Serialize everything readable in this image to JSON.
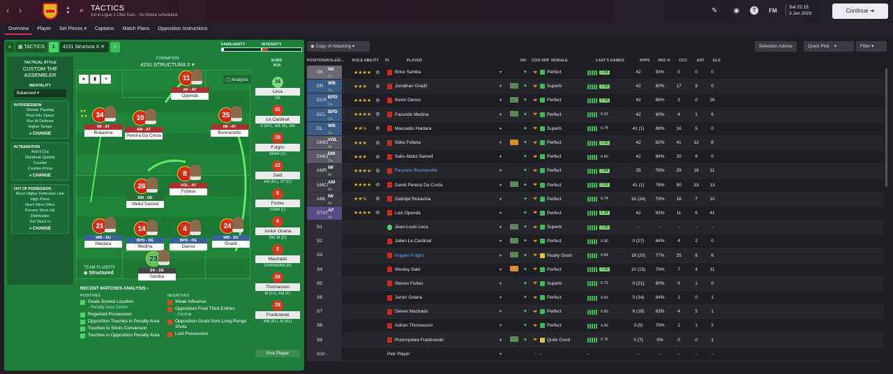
{
  "header": {
    "title": "TACTICS",
    "subtitle": "1st in Ligue 1 Uber Eats - No fixture scheduled.",
    "date_line1": "Sat 22:15",
    "date_line2": "3 Jun 2023",
    "continue": "Continue",
    "fm": "FM",
    "help": "?"
  },
  "tabs": [
    "Overview",
    "Player",
    "Set Pieces",
    "Captains",
    "Match Plans",
    "Opposition Instructions"
  ],
  "toolbar": {
    "tactics": "TACTICS",
    "slot": "1",
    "formation_name": "4231 Structura X",
    "familiarity": "FAMILIARITY",
    "intensity": "INTENSITY",
    "familiarity_level": 0.05,
    "intensity_level": 0.15
  },
  "tactical_style": {
    "label": "TACTICAL STYLE",
    "value": "CUSTOM THE ASSEMBLER",
    "mentality_label": "MENTALITY",
    "mentality": "Balanced",
    "in_possession": {
      "title": "IN POSSESSION",
      "items": [
        "Shorter Passing",
        "Pass Into Space",
        "Run At Defence",
        "Higher Tempo"
      ]
    },
    "in_transition": {
      "title": "IN TRANSITION",
      "items": [
        "Roll It Out",
        "Distribute Quickly",
        "Counter",
        "Counter-Press"
      ]
    },
    "out_of_possession": {
      "title": "OUT OF POSSESSION",
      "items": [
        "Much Higher Defensive Line",
        "High Press",
        "Much More Often",
        "Prevent Short GK",
        "Distribution",
        "Get Stuck In"
      ]
    },
    "change": "CHANGE"
  },
  "formation": {
    "label": "FORMATION",
    "value": "4231 STRUCTURA X",
    "analysis": "Analysis"
  },
  "team_fluidity": {
    "label": "TEAM FLUIDITY",
    "value": "Structured"
  },
  "pitch_players": [
    {
      "num": "11",
      "role": "AF - AT",
      "name": "Openda"
    },
    {
      "num": "34",
      "role": "IW - AT",
      "name": "Rukavina"
    },
    {
      "num": "10",
      "role": "AM - AT",
      "name": "Pereira Da Costa"
    },
    {
      "num": "25",
      "role": "IW - AT",
      "name": "Buonanotte"
    },
    {
      "num": "26",
      "role": "DM - DE",
      "name": "Abdul Samed"
    },
    {
      "num": "8",
      "role": "VOL - AT",
      "name": "Fofana"
    },
    {
      "num": "21",
      "role": "WB - SU",
      "name": "Haidara"
    },
    {
      "num": "14",
      "role": "BPD - DE",
      "name": "Medina"
    },
    {
      "num": "4",
      "role": "BPD - DE",
      "name": "Danso"
    },
    {
      "num": "24",
      "role": "WB - SU",
      "name": "Gradit"
    },
    {
      "num": "23",
      "role": "SK - DE",
      "name": "Samba"
    }
  ],
  "subs": {
    "label": "SUBS:",
    "count": "9/15",
    "items": [
      {
        "num": "16",
        "name": "Leca",
        "pos": "GK"
      },
      {
        "num": "31",
        "name": "Le Cardinal",
        "pos": "D (RC), WB (R), DM"
      },
      {
        "num": "20",
        "name": "Fulgini",
        "pos": "M/AM (C)"
      },
      {
        "num": "22",
        "name": "Said",
        "pos": "AM (RL), ST (C)"
      },
      {
        "num": "5",
        "name": "Fortes",
        "pos": "D/WB (L)"
      },
      {
        "num": "6",
        "name": "Junior Onana",
        "pos": "DM, M (C)"
      },
      {
        "num": "2",
        "name": "Machado",
        "pos": "D/WB/M/AM (R)"
      },
      {
        "num": "28",
        "name": "Thomasson",
        "pos": "M (LC), AM (C)"
      },
      {
        "num": "29",
        "name": "Frankowski",
        "pos": "WB (RL), M (RL)"
      },
      {
        "num": "",
        "name": "Pick Player",
        "pos": ""
      }
    ]
  },
  "recent": {
    "title": "RECENT MATCHES ANALYSIS",
    "positives_label": "POSITIVES",
    "negatives_label": "NEGATIVES",
    "positives": [
      {
        "t": "Goals Scored Location",
        "s": "- Penalty Area Centre"
      },
      {
        "t": "Regained Possession",
        "s": ""
      },
      {
        "t": "Opposition Touches in Penalty Area",
        "s": ""
      },
      {
        "t": "Touches to Shots Conversion",
        "s": ""
      },
      {
        "t": "Touches in Opposition Penalty Area",
        "s": ""
      }
    ],
    "negatives": [
      {
        "t": "Weak Influence",
        "s": ""
      },
      {
        "t": "Opposition Final Third Entries",
        "s": "- Central"
      },
      {
        "t": "Opposition Goals from Long-Range Shots",
        "s": ""
      },
      {
        "t": "Lost Possession",
        "s": ""
      }
    ]
  },
  "table_tools": {
    "copy": "Copy of Attacking",
    "advice": "Selection Advice",
    "quick": "Quick Pick",
    "filter": "Filter"
  },
  "columns": [
    "POSITION/ROLE/D...",
    "ROLE ABILITY",
    "PI",
    "PLAYER",
    "INF",
    "CON",
    "SHP",
    "MORALE",
    "LAST 5 GAMES",
    "APPS",
    "PAS %",
    "CCC",
    "AST",
    "GLS"
  ],
  "rows": [
    {
      "pos": "GK",
      "role": "SK",
      "duty": "De",
      "stars": "★★★★",
      "player": "Brice Samba",
      "inf": "",
      "morale": "Perfect",
      "avg": "7.04",
      "apps": "42",
      "pas": "93%",
      "ccc": "0",
      "ast": "0",
      "gls": "0"
    },
    {
      "pos": "DR",
      "role": "WB",
      "duty": "Su",
      "stars": "★★★",
      "player": "Jonathan Gradit",
      "inf": "",
      "morale": "Superb",
      "avg": "7.30",
      "apps": "42",
      "pas": "80%",
      "ccc": "17",
      "ast": "9",
      "gls": "0"
    },
    {
      "pos": "DCR",
      "role": "BPD",
      "duty": "De",
      "stars": "★★★★",
      "player": "Kevin Danso",
      "inf": "",
      "morale": "Perfect",
      "avg": "7.74",
      "apps": "42",
      "pas": "88%",
      "ccc": "2",
      "ast": "0",
      "gls": "26"
    },
    {
      "pos": "DCL",
      "role": "BPD",
      "duty": "De",
      "stars": "★★★★",
      "player": "Facundo Medina",
      "inf": "",
      "morale": "Perfect",
      "avg": "6.92",
      "apps": "42",
      "pas": "90%",
      "ccc": "4",
      "ast": "1",
      "gls": "6"
    },
    {
      "pos": "DL",
      "role": "WB",
      "duty": "Su",
      "stars": "★★½",
      "player": "Massadio Haidara",
      "inf": "",
      "morale": "Superb",
      "avg": "6.74",
      "apps": "41 (1)",
      "pas": "88%",
      "ccc": "16",
      "ast": "5",
      "gls": "0"
    },
    {
      "pos": "DMCR",
      "role": "VOL",
      "duty": "At",
      "stars": "★★★",
      "player": "Séko Fofana",
      "inf": "",
      "morale": "Perfect",
      "avg": "7.22",
      "apps": "42",
      "pas": "82%",
      "ccc": "41",
      "ast": "12",
      "gls": "8"
    },
    {
      "pos": "DMCL",
      "role": "DM",
      "duty": "De",
      "stars": "★★★",
      "player": "Salis Abdul Samed",
      "inf": "",
      "morale": "Perfect",
      "avg": "6.80",
      "apps": "42",
      "pas": "84%",
      "ccc": "20",
      "ast": "9",
      "gls": "0"
    },
    {
      "pos": "AMR",
      "role": "IW",
      "duty": "At",
      "stars": "★★★★",
      "player": "Facundo Buonanotte",
      "inf": "",
      "morale": "Perfect",
      "avg": "7.04",
      "apps": "25",
      "pas": "78%",
      "ccc": "29",
      "ast": "16",
      "gls": "11"
    },
    {
      "pos": "AMCL",
      "role": "AM",
      "duty": "At",
      "stars": "★★★★",
      "player": "David Pereira Da Costa",
      "inf": "",
      "morale": "Perfect",
      "avg": "7.52",
      "apps": "41 (1)",
      "pas": "78%",
      "ccc": "90",
      "ast": "33",
      "gls": "13"
    },
    {
      "pos": "AML",
      "role": "IW",
      "duty": "At",
      "stars": "★★½",
      "player": "Gabrijel Rukavina",
      "inf": "",
      "morale": "Perfect",
      "avg": "6.74",
      "apps": "16 (24)",
      "pas": "79%",
      "ccc": "18",
      "ast": "7",
      "gls": "10"
    },
    {
      "pos": "STCR",
      "role": "AF",
      "duty": "At",
      "stars": "★★★★",
      "player": "Lois Openda",
      "inf": "",
      "morale": "Perfect",
      "avg": "7.34",
      "apps": "42",
      "pas": "83%",
      "ccc": "11",
      "ast": "6",
      "gls": "41"
    },
    {
      "pos": "S1",
      "role": "",
      "duty": "",
      "stars": "",
      "player": "Jean-Louis Leca",
      "inf": "",
      "morale": "Superb",
      "avg": "7.35",
      "apps": "-",
      "pas": "-",
      "ccc": "-",
      "ast": "-",
      "gls": "-"
    },
    {
      "pos": "S2",
      "role": "",
      "duty": "",
      "stars": "",
      "player": "Julien Le Cardinal",
      "inf": "",
      "morale": "Perfect",
      "avg": "6.90",
      "apps": "0 (27)",
      "pas": "84%",
      "ccc": "4",
      "ast": "2",
      "gls": "0"
    },
    {
      "pos": "S3",
      "role": "",
      "duty": "",
      "stars": "",
      "player": "Angelo Fulgini",
      "inf": "",
      "morale": "Really Good",
      "avg": "6.84",
      "apps": "18 (20)",
      "pas": "77%",
      "ccc": "25",
      "ast": "8",
      "gls": "6"
    },
    {
      "pos": "S4",
      "role": "",
      "duty": "",
      "stars": "",
      "player": "Wesley Said",
      "inf": "",
      "morale": "Perfect",
      "avg": "7.30",
      "apps": "10 (15)",
      "pas": "79%",
      "ccc": "7",
      "ast": "4",
      "gls": "11"
    },
    {
      "pos": "S5",
      "role": "",
      "duty": "",
      "stars": "",
      "player": "Steven Fortes",
      "inf": "",
      "morale": "Superb",
      "avg": "6.72",
      "apps": "0 (21)",
      "pas": "90%",
      "ccc": "0",
      "ast": "1",
      "gls": "0"
    },
    {
      "pos": "S6",
      "role": "",
      "duty": "",
      "stars": "",
      "player": "Junior Onana",
      "inf": "",
      "morale": "Perfect",
      "avg": "6.82",
      "apps": "0 (34)",
      "pas": "84%",
      "ccc": "1",
      "ast": "0",
      "gls": "1"
    },
    {
      "pos": "S7",
      "role": "",
      "duty": "",
      "stars": "",
      "player": "Deiver Machado",
      "inf": "",
      "morale": "Perfect",
      "avg": "6.60",
      "apps": "6 (18)",
      "pas": "83%",
      "ccc": "4",
      "ast": "5",
      "gls": "1"
    },
    {
      "pos": "S8",
      "role": "",
      "duty": "",
      "stars": "",
      "player": "Adrian Thomasson",
      "inf": "",
      "morale": "Perfect",
      "avg": "6.80",
      "apps": "3 (5)",
      "pas": "79%",
      "ccc": "1",
      "ast": "1",
      "gls": "2"
    },
    {
      "pos": "S9",
      "role": "",
      "duty": "",
      "stars": "",
      "player": "Przemysław Frankowski",
      "inf": "",
      "morale": "Quite Good",
      "avg": "6.76",
      "apps": "0 (7)",
      "pas": "0%",
      "ccc": "0",
      "ast": "0",
      "gls": "1"
    },
    {
      "pos": "S10",
      "role": "",
      "duty": "",
      "stars": "",
      "player": "Pick Player",
      "inf": "",
      "morale": "-",
      "avg": "-",
      "apps": "-",
      "pas": "-",
      "ccc": "-",
      "ast": "-",
      "gls": "-"
    }
  ]
}
